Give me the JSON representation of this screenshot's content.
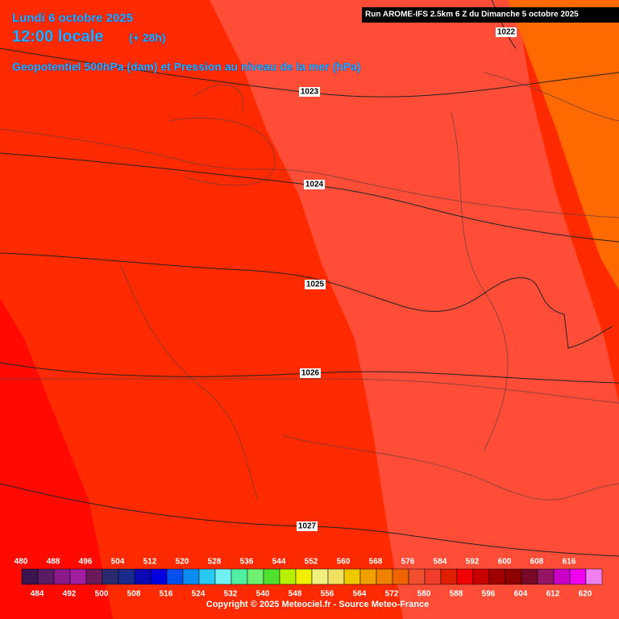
{
  "header": {
    "date": "Lundi 6 octobre 2025",
    "time": "12:00 locale",
    "lead": "(+ 28h)",
    "subtitle": "Geopotentiel 500hPa (dam) et Pression au niveau de la mer (hPa)",
    "run": "Run AROME-IFS 2.5km 6 Z du Dimanche 5 octobre 2025"
  },
  "isobars": [
    1022,
    1023,
    1024,
    1025,
    1026,
    1027
  ],
  "scale": {
    "values": [
      480,
      484,
      488,
      492,
      496,
      500,
      504,
      508,
      512,
      516,
      520,
      524,
      528,
      532,
      536,
      540,
      544,
      548,
      552,
      556,
      560,
      564,
      568,
      572,
      576,
      580,
      584,
      588,
      592,
      596,
      600,
      604,
      608,
      612,
      616,
      620
    ],
    "colors": [
      "#3c1450",
      "#5a1a64",
      "#8a1a8a",
      "#a01ea0",
      "#6a1a5a",
      "#2a2a6e",
      "#1a2a8a",
      "#0a0ab4",
      "#0000e0",
      "#0050f0",
      "#0a8cf0",
      "#28c8f0",
      "#70f0f0",
      "#50f0a0",
      "#70f070",
      "#50e030",
      "#b4f000",
      "#f0f000",
      "#f0f080",
      "#f0e060",
      "#f0c800",
      "#f0a000",
      "#f08200",
      "#f06400",
      "#f05030",
      "#f03c28",
      "#e01e00",
      "#f00000",
      "#c80000",
      "#a00000",
      "#8c0000",
      "#780a28",
      "#961464",
      "#c800c8",
      "#f000f0",
      "#f080f0"
    ]
  },
  "footer": "Copyright © 2025 Meteociel.fr - Source Meteo-France"
}
